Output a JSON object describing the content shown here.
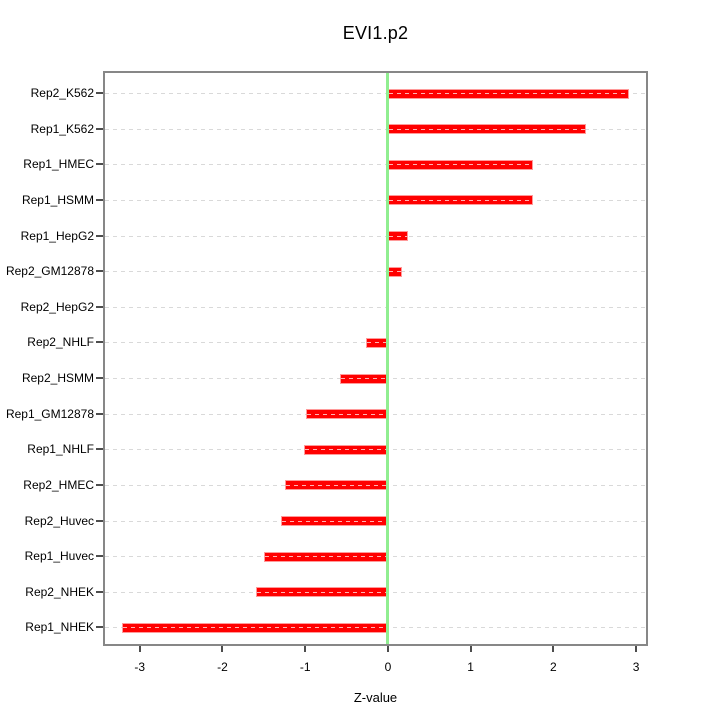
{
  "title": "EVI1.p2",
  "chart_data": {
    "type": "bar",
    "orientation": "horizontal",
    "title": "EVI1.p2",
    "xlabel": "Z-value",
    "ylabel": "",
    "categories": [
      "Rep2_K562",
      "Rep1_K562",
      "Rep1_HMEC",
      "Rep1_HSMM",
      "Rep1_HepG2",
      "Rep2_GM12878",
      "Rep2_HepG2",
      "Rep2_NHLF",
      "Rep2_HSMM",
      "Rep1_GM12878",
      "Rep1_NHLF",
      "Rep2_HMEC",
      "Rep2_Huvec",
      "Rep1_Huvec",
      "Rep2_NHEK",
      "Rep1_NHEK"
    ],
    "values": [
      2.91,
      2.4,
      1.76,
      1.75,
      0.24,
      0.17,
      0.0,
      -0.26,
      -0.58,
      -0.99,
      -1.02,
      -1.24,
      -1.29,
      -1.5,
      -1.6,
      -3.21
    ],
    "xticks": [
      -3,
      -2,
      -1,
      0,
      1,
      2,
      3
    ],
    "xlim": [
      -3.42,
      3.12
    ],
    "grid": "horizontal-dashed",
    "zero_line": true,
    "legend": "none",
    "colors": {
      "bar": "#ff0000",
      "bar_dash": "#ffb3b3",
      "bar_border": "#ff9a9a",
      "grid": "#d9d9d9",
      "zero_line": "#90ee90",
      "box_border": "#878787",
      "text": "#000000",
      "background": "#ffffff"
    }
  }
}
